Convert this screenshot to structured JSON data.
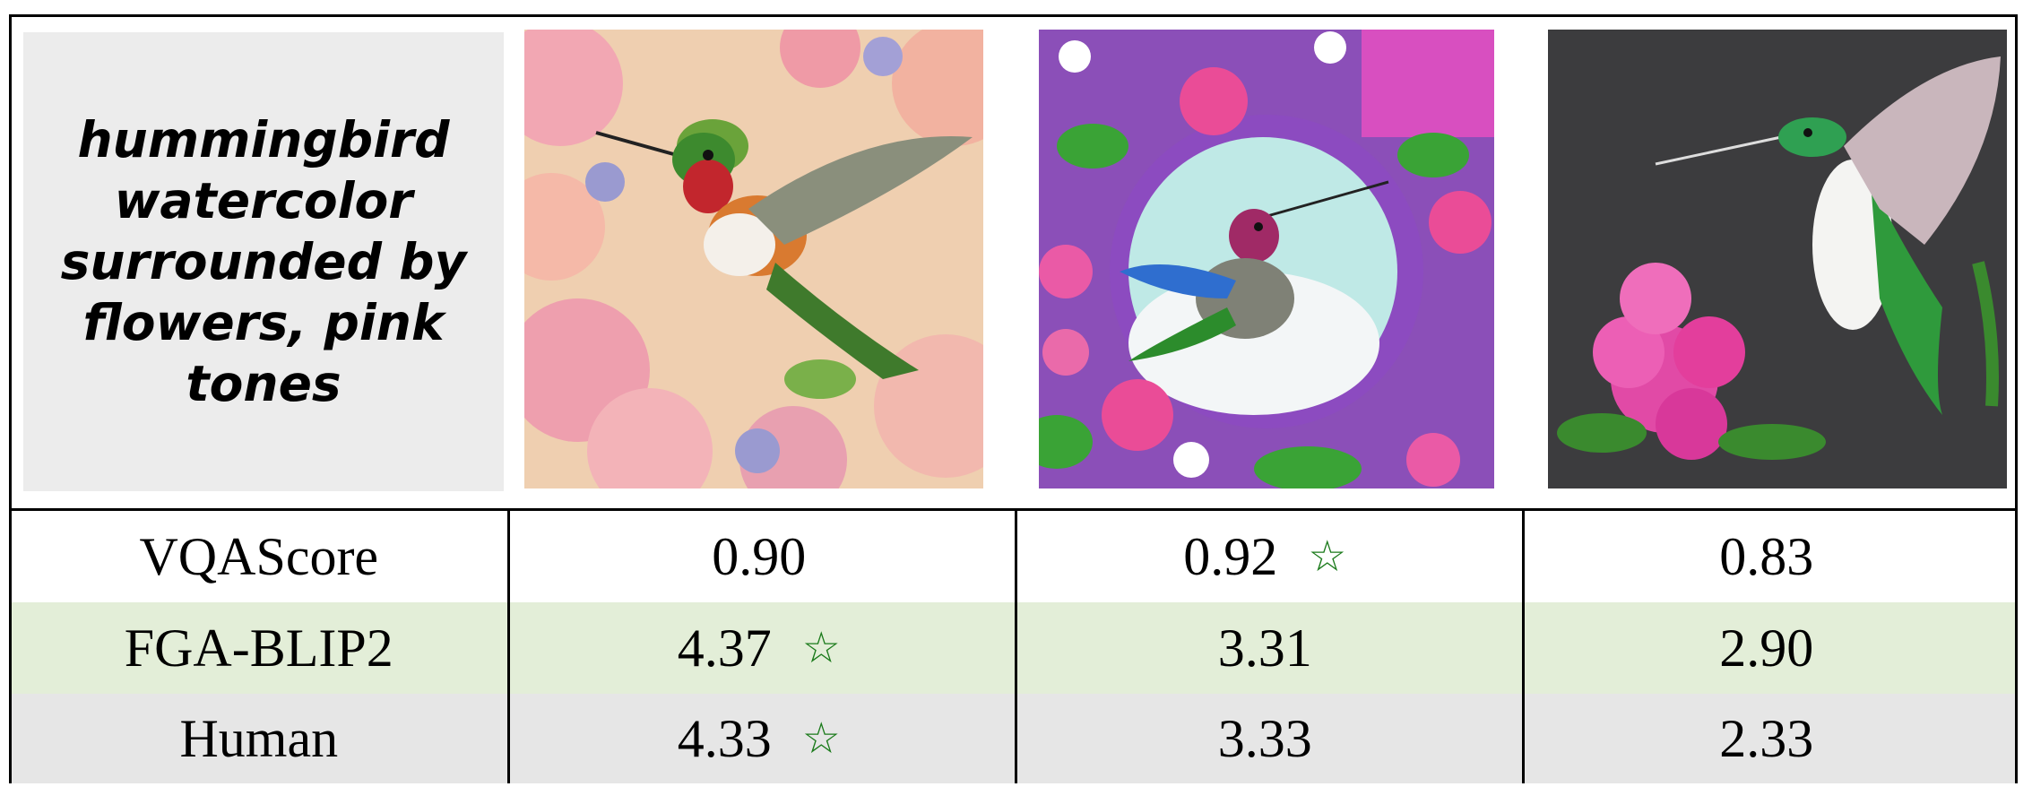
{
  "prompt": "hummingbird watercolor surrounded by flowers, pink tones",
  "images": [
    {
      "icon": "hummingbird-pink-flowers-image"
    },
    {
      "icon": "hummingbird-purple-wreath-image"
    },
    {
      "icon": "hummingbird-dark-background-image"
    }
  ],
  "rows": [
    {
      "label": "VQAScore",
      "values": [
        "0.90",
        "0.92",
        "0.83"
      ],
      "best": 1
    },
    {
      "label": "FGA-BLIP2",
      "values": [
        "4.37",
        "3.31",
        "2.90"
      ],
      "best": 0
    },
    {
      "label": "Human",
      "values": [
        "4.33",
        "3.33",
        "2.33"
      ],
      "best": 0
    }
  ],
  "star_symbol": "☆",
  "colors": {
    "star": "#1a7a1a",
    "row_fga": "#e3eed8",
    "row_human": "#e6e6e6",
    "prompt_bg": "#ececec"
  }
}
